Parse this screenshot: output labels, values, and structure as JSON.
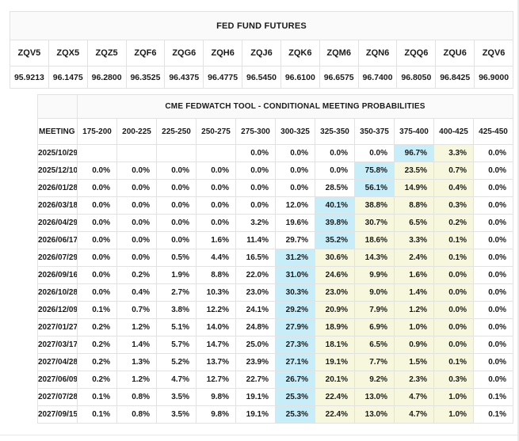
{
  "colors": {
    "highlight_blue": "#c7edf8",
    "highlight_yellow": "#f7f7de",
    "header_bg": "#fafafa",
    "border": "#e2e2e2"
  },
  "futures_table": {
    "title": "FED FUND FUTURES",
    "columns": [
      "ZQV5",
      "ZQX5",
      "ZQZ5",
      "ZQF6",
      "ZQG6",
      "ZQH6",
      "ZQJ6",
      "ZQK6",
      "ZQM6",
      "ZQN6",
      "ZQQ6",
      "ZQU6",
      "ZQV6"
    ],
    "values": [
      "95.9213",
      "96.1475",
      "96.2800",
      "96.3525",
      "96.4375",
      "96.4775",
      "96.5450",
      "96.6100",
      "96.6575",
      "96.7400",
      "96.8050",
      "96.8425",
      "96.9000"
    ]
  },
  "fedwatch_table": {
    "title": "CME FEDWATCH TOOL - CONDITIONAL MEETING PROBABILITIES",
    "date_header": "MEETING DATE",
    "range_headers": [
      "175-200",
      "200-225",
      "225-250",
      "250-275",
      "275-300",
      "300-325",
      "325-350",
      "350-375",
      "375-400",
      "400-425",
      "425-450"
    ],
    "rows": [
      {
        "date": "2025/10/29",
        "values": [
          "",
          "",
          "",
          "",
          "0.0%",
          "0.0%",
          "0.0%",
          "0.0%",
          "96.7%",
          "3.3%",
          "0.0%"
        ],
        "hl": [
          0,
          0,
          0,
          0,
          0,
          0,
          0,
          0,
          1,
          2,
          0
        ]
      },
      {
        "date": "2025/12/10",
        "values": [
          "0.0%",
          "0.0%",
          "0.0%",
          "0.0%",
          "0.0%",
          "0.0%",
          "0.0%",
          "75.8%",
          "23.5%",
          "0.7%",
          "0.0%"
        ],
        "hl": [
          0,
          0,
          0,
          0,
          0,
          0,
          0,
          1,
          2,
          2,
          0
        ]
      },
      {
        "date": "2026/01/28",
        "values": [
          "0.0%",
          "0.0%",
          "0.0%",
          "0.0%",
          "0.0%",
          "0.0%",
          "28.5%",
          "56.1%",
          "14.9%",
          "0.4%",
          "0.0%"
        ],
        "hl": [
          0,
          0,
          0,
          0,
          0,
          0,
          0,
          1,
          2,
          2,
          0
        ]
      },
      {
        "date": "2026/03/18",
        "values": [
          "0.0%",
          "0.0%",
          "0.0%",
          "0.0%",
          "0.0%",
          "12.0%",
          "40.1%",
          "38.8%",
          "8.8%",
          "0.3%",
          "0.0%"
        ],
        "hl": [
          0,
          0,
          0,
          0,
          0,
          0,
          1,
          2,
          2,
          2,
          0
        ]
      },
      {
        "date": "2026/04/29",
        "values": [
          "0.0%",
          "0.0%",
          "0.0%",
          "0.0%",
          "3.2%",
          "19.6%",
          "39.8%",
          "30.7%",
          "6.5%",
          "0.2%",
          "0.0%"
        ],
        "hl": [
          0,
          0,
          0,
          0,
          0,
          0,
          1,
          2,
          2,
          2,
          0
        ]
      },
      {
        "date": "2026/06/17",
        "values": [
          "0.0%",
          "0.0%",
          "0.0%",
          "1.6%",
          "11.4%",
          "29.7%",
          "35.2%",
          "18.6%",
          "3.3%",
          "0.1%",
          "0.0%"
        ],
        "hl": [
          0,
          0,
          0,
          0,
          0,
          0,
          1,
          2,
          2,
          2,
          0
        ]
      },
      {
        "date": "2026/07/29",
        "values": [
          "0.0%",
          "0.0%",
          "0.5%",
          "4.4%",
          "16.5%",
          "31.2%",
          "30.6%",
          "14.3%",
          "2.4%",
          "0.1%",
          "0.0%"
        ],
        "hl": [
          0,
          0,
          0,
          0,
          0,
          1,
          2,
          2,
          2,
          2,
          0
        ]
      },
      {
        "date": "2026/09/16",
        "values": [
          "0.0%",
          "0.2%",
          "1.9%",
          "8.8%",
          "22.0%",
          "31.0%",
          "24.6%",
          "9.9%",
          "1.6%",
          "0.0%",
          "0.0%"
        ],
        "hl": [
          0,
          0,
          0,
          0,
          0,
          1,
          2,
          2,
          2,
          2,
          0
        ]
      },
      {
        "date": "2026/10/28",
        "values": [
          "0.0%",
          "0.4%",
          "2.7%",
          "10.3%",
          "23.0%",
          "30.3%",
          "23.0%",
          "9.0%",
          "1.4%",
          "0.0%",
          "0.0%"
        ],
        "hl": [
          0,
          0,
          0,
          0,
          0,
          1,
          2,
          2,
          2,
          2,
          0
        ]
      },
      {
        "date": "2026/12/09",
        "values": [
          "0.1%",
          "0.7%",
          "3.8%",
          "12.2%",
          "24.1%",
          "29.2%",
          "20.9%",
          "7.9%",
          "1.2%",
          "0.0%",
          "0.0%"
        ],
        "hl": [
          0,
          0,
          0,
          0,
          0,
          1,
          2,
          2,
          2,
          2,
          0
        ]
      },
      {
        "date": "2027/01/27",
        "values": [
          "0.2%",
          "1.2%",
          "5.1%",
          "14.0%",
          "24.8%",
          "27.9%",
          "18.9%",
          "6.9%",
          "1.0%",
          "0.0%",
          "0.0%"
        ],
        "hl": [
          0,
          0,
          0,
          0,
          0,
          1,
          2,
          2,
          2,
          2,
          0
        ]
      },
      {
        "date": "2027/03/17",
        "values": [
          "0.2%",
          "1.4%",
          "5.7%",
          "14.7%",
          "25.0%",
          "27.3%",
          "18.1%",
          "6.5%",
          "0.9%",
          "0.0%",
          "0.0%"
        ],
        "hl": [
          0,
          0,
          0,
          0,
          0,
          1,
          2,
          2,
          2,
          2,
          0
        ]
      },
      {
        "date": "2027/04/28",
        "values": [
          "0.2%",
          "1.3%",
          "5.2%",
          "13.7%",
          "23.9%",
          "27.1%",
          "19.1%",
          "7.7%",
          "1.5%",
          "0.1%",
          "0.0%"
        ],
        "hl": [
          0,
          0,
          0,
          0,
          0,
          1,
          2,
          2,
          2,
          2,
          0
        ]
      },
      {
        "date": "2027/06/09",
        "values": [
          "0.2%",
          "1.2%",
          "4.7%",
          "12.7%",
          "22.7%",
          "26.7%",
          "20.1%",
          "9.2%",
          "2.3%",
          "0.3%",
          "0.0%"
        ],
        "hl": [
          0,
          0,
          0,
          0,
          0,
          1,
          2,
          2,
          2,
          2,
          0
        ]
      },
      {
        "date": "2027/07/28",
        "values": [
          "0.1%",
          "0.8%",
          "3.5%",
          "9.8%",
          "19.1%",
          "25.3%",
          "22.4%",
          "13.0%",
          "4.7%",
          "1.0%",
          "0.1%"
        ],
        "hl": [
          0,
          0,
          0,
          0,
          0,
          1,
          2,
          2,
          2,
          2,
          0
        ]
      },
      {
        "date": "2027/09/15",
        "values": [
          "0.1%",
          "0.8%",
          "3.5%",
          "9.8%",
          "19.1%",
          "25.3%",
          "22.4%",
          "13.0%",
          "4.7%",
          "1.0%",
          "0.1%"
        ],
        "hl": [
          0,
          0,
          0,
          0,
          0,
          1,
          2,
          2,
          2,
          2,
          0
        ]
      }
    ]
  }
}
